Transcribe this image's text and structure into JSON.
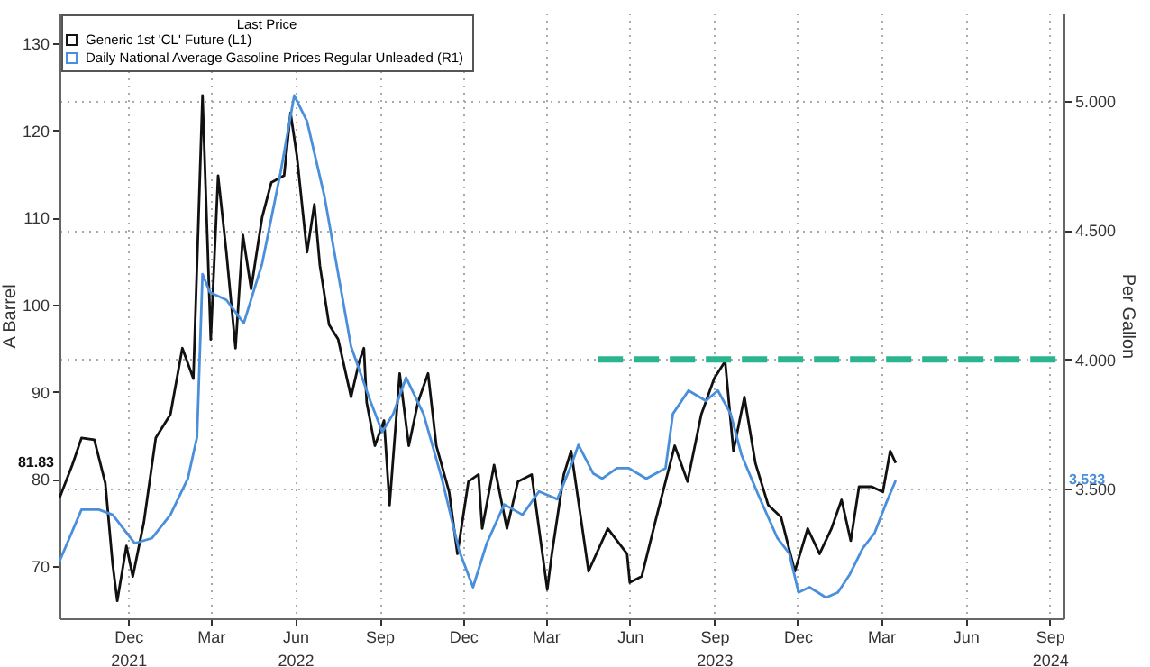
{
  "chart_data": {
    "type": "line",
    "legend_title": "Last Price",
    "ylabel": "A Barrel",
    "y2label": "Per Gallon",
    "legend": "top left",
    "grid": true,
    "xlim": [
      "2021-10-01",
      "2024-09-30"
    ],
    "xticks": [
      {
        "value": "2021-12-15",
        "label": "Dec\n2021"
      },
      {
        "value": "2022-03-15",
        "label": "Mar"
      },
      {
        "value": "2022-06-15",
        "label": "Jun\n2022"
      },
      {
        "value": "2022-09-15",
        "label": "Sep"
      },
      {
        "value": "2022-12-15",
        "label": "Dec"
      },
      {
        "value": "2023-03-15",
        "label": "Mar"
      },
      {
        "value": "2023-06-15",
        "label": "Jun"
      },
      {
        "value": "2023-09-15",
        "label": "Sep\n2023"
      },
      {
        "value": "2023-12-15",
        "label": "Dec"
      },
      {
        "value": "2024-03-15",
        "label": "Mar"
      },
      {
        "value": "2024-06-15",
        "label": "Jun"
      },
      {
        "value": "2024-09-15",
        "label": "Sep\n2024"
      }
    ],
    "ylim": [
      64,
      133.5
    ],
    "yticks": [
      70,
      80,
      90,
      100,
      110,
      120,
      130
    ],
    "y2lim": [
      3.0,
      5.34
    ],
    "y2ticks": [
      {
        "value": 3.5,
        "label": "3.500"
      },
      {
        "value": 4,
        "label": "4.000"
      },
      {
        "value": 4.5,
        "label": "4.500"
      },
      {
        "value": 5,
        "label": "5.000"
      }
    ],
    "annotations": [
      "81.83",
      "3.533"
    ],
    "series": [
      {
        "name": "Generic 1st 'CL' Future  (L1)",
        "color": "#111111",
        "type": "line",
        "x": [
          "2021-10-01",
          "2021-10-15",
          "2021-10-25",
          "2021-11-08",
          "2021-11-20",
          "2021-11-28",
          "2021-12-03",
          "2021-12-13",
          "2021-12-20",
          "2022-01-01",
          "2022-01-14",
          "2022-01-30",
          "2022-02-12",
          "2022-02-24",
          "2022-03-06",
          "2022-03-15",
          "2022-03-23",
          "2022-04-01",
          "2022-04-11",
          "2022-04-19",
          "2022-04-28",
          "2022-05-10",
          "2022-05-20",
          "2022-06-03",
          "2022-06-10",
          "2022-06-17",
          "2022-06-28",
          "2022-07-06",
          "2022-07-12",
          "2022-07-22",
          "2022-08-01",
          "2022-08-15",
          "2022-08-24",
          "2022-08-29",
          "2022-09-01",
          "2022-09-10",
          "2022-09-20",
          "2022-09-26",
          "2022-10-07",
          "2022-10-17",
          "2022-10-27",
          "2022-11-07",
          "2022-11-16",
          "2022-11-30",
          "2022-12-09",
          "2022-12-21",
          "2023-01-01",
          "2023-01-05",
          "2023-01-18",
          "2023-02-01",
          "2023-02-13",
          "2023-02-28",
          "2023-03-17",
          "2023-03-22",
          "2023-04-04",
          "2023-04-12",
          "2023-05-01",
          "2023-05-22",
          "2023-06-12",
          "2023-06-15",
          "2023-06-28",
          "2023-07-14",
          "2023-08-03",
          "2023-08-17",
          "2023-09-01",
          "2023-09-15",
          "2023-09-27",
          "2023-10-06",
          "2023-10-18",
          "2023-10-30",
          "2023-11-13",
          "2023-11-27",
          "2023-12-12",
          "2023-12-26",
          "2024-01-08",
          "2024-01-21",
          "2024-02-01",
          "2024-02-11",
          "2024-02-20",
          "2024-03-05",
          "2024-03-17",
          "2024-03-25",
          "2024-03-31"
        ],
        "values": [
          77.8,
          81.6,
          84.7,
          84.5,
          79.5,
          70.2,
          66,
          72.3,
          68.8,
          75,
          84.7,
          87.4,
          95,
          91.5,
          124,
          96,
          114.8,
          106,
          95,
          108,
          101.8,
          110,
          114,
          114.8,
          122,
          117,
          106,
          111.5,
          104.5,
          97.7,
          96,
          89.4,
          93.5,
          95,
          88.8,
          83.8,
          86.7,
          77,
          92.1,
          83.8,
          88.8,
          92.1,
          83.8,
          78.5,
          71.4,
          79.7,
          80.5,
          74.3,
          81.6,
          74.3,
          79.7,
          80.5,
          67.3,
          71.4,
          80.5,
          83.2,
          69.4,
          74.3,
          71.4,
          68.1,
          68.8,
          75.6,
          83.8,
          79.7,
          87.4,
          91.5,
          93.5,
          83.2,
          89.4,
          81.8,
          77,
          75.6,
          69.4,
          74.3,
          71.4,
          74.3,
          77.6,
          72.9,
          79.1,
          79.1,
          78.5,
          83.2,
          81.83
        ]
      },
      {
        "name": "Daily National Average Gasoline Prices Regular Unleaded  (R1)",
        "color": "#4a8fdc",
        "type": "line",
        "axis": "y2",
        "x": [
          "2021-10-01",
          "2021-10-25",
          "2021-11-13",
          "2021-11-28",
          "2021-12-22",
          "2022-01-10",
          "2022-01-30",
          "2022-02-18",
          "2022-02-28",
          "2022-03-06",
          "2022-03-14",
          "2022-04-01",
          "2022-04-20",
          "2022-05-10",
          "2022-05-30",
          "2022-06-14",
          "2022-06-28",
          "2022-07-17",
          "2022-08-06",
          "2022-08-15",
          "2022-09-05",
          "2022-09-18",
          "2022-09-30",
          "2022-10-14",
          "2022-11-02",
          "2022-11-22",
          "2022-12-11",
          "2022-12-26",
          "2023-01-10",
          "2023-01-29",
          "2023-02-18",
          "2023-03-08",
          "2023-03-28",
          "2023-04-13",
          "2023-04-20",
          "2023-05-06",
          "2023-05-16",
          "2023-06-01",
          "2023-06-14",
          "2023-07-03",
          "2023-07-24",
          "2023-08-01",
          "2023-08-18",
          "2023-09-06",
          "2023-09-19",
          "2023-10-03",
          "2023-10-15",
          "2023-11-03",
          "2023-11-23",
          "2023-12-06",
          "2023-12-16",
          "2023-12-28",
          "2024-01-15",
          "2024-01-28",
          "2024-02-10",
          "2024-02-24",
          "2024-03-08",
          "2024-03-20",
          "2024-03-31"
        ],
        "values": [
          3.22,
          3.42,
          3.42,
          3.4,
          3.29,
          3.31,
          3.4,
          3.54,
          3.7,
          4.33,
          4.26,
          4.23,
          4.14,
          4.37,
          4.72,
          5.02,
          4.92,
          4.63,
          4.23,
          4.05,
          3.84,
          3.72,
          3.79,
          3.93,
          3.79,
          3.54,
          3.26,
          3.12,
          3.29,
          3.44,
          3.4,
          3.49,
          3.46,
          3.6,
          3.67,
          3.56,
          3.54,
          3.58,
          3.58,
          3.54,
          3.58,
          3.79,
          3.88,
          3.84,
          3.88,
          3.79,
          3.63,
          3.47,
          3.31,
          3.25,
          3.1,
          3.12,
          3.08,
          3.1,
          3.17,
          3.27,
          3.33,
          3.44,
          3.533
        ]
      },
      {
        "color": "#2bb58e",
        "type": "line",
        "axis": "y2",
        "line_style": "dashed",
        "x": [
          "2023-05-11",
          "2024-09-30"
        ],
        "values": [
          4,
          4
        ]
      }
    ]
  }
}
